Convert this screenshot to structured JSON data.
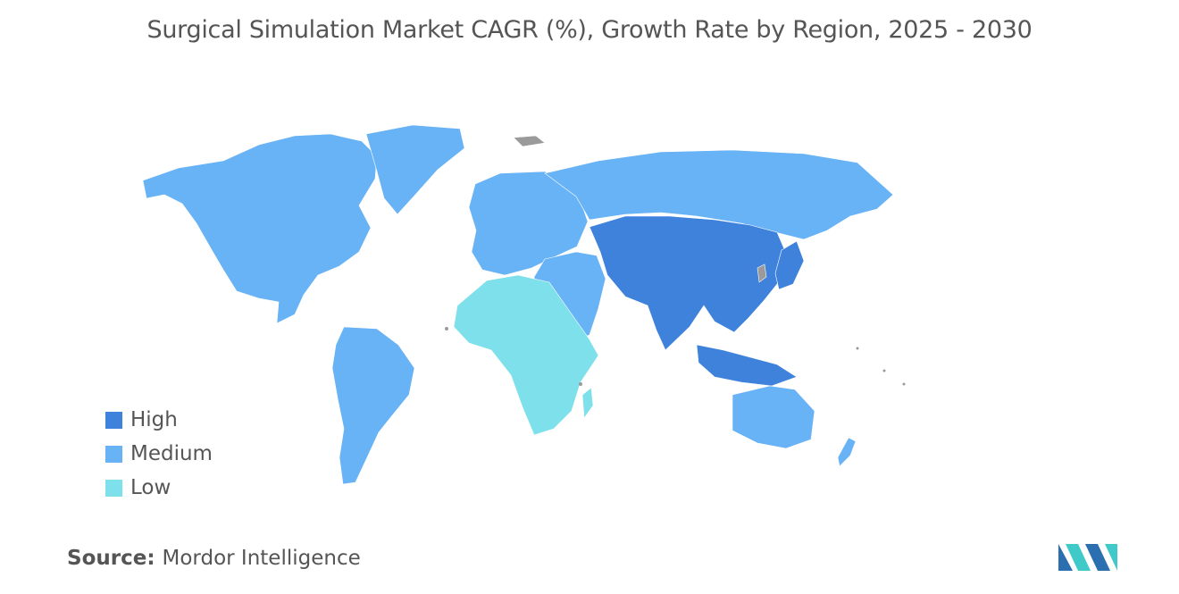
{
  "title": "Surgical Simulation Market CAGR (%), Growth Rate by Region, 2025 - 2030",
  "colors": {
    "high": "#3f82dc",
    "medium": "#68b2f6",
    "low": "#7ee0ea",
    "no_data": "#9a9a9a",
    "logo_dark": "#2c6fb0",
    "logo_light": "#3fc9c9"
  },
  "legend": [
    {
      "key": "high",
      "label": "High"
    },
    {
      "key": "medium",
      "label": "Medium"
    },
    {
      "key": "low",
      "label": "Low"
    }
  ],
  "regions": [
    {
      "name": "North America",
      "level": "Medium"
    },
    {
      "name": "South America",
      "level": "Medium"
    },
    {
      "name": "Europe",
      "level": "Medium"
    },
    {
      "name": "Middle East",
      "level": "Medium"
    },
    {
      "name": "Africa",
      "level": "Low"
    },
    {
      "name": "Asia Pacific",
      "level": "High"
    },
    {
      "name": "Australia and New Zealand",
      "level": "Medium"
    }
  ],
  "source": {
    "label": "Source:",
    "value": "Mordor Intelligence"
  },
  "logo_icon": "mordor-intelligence-logo"
}
